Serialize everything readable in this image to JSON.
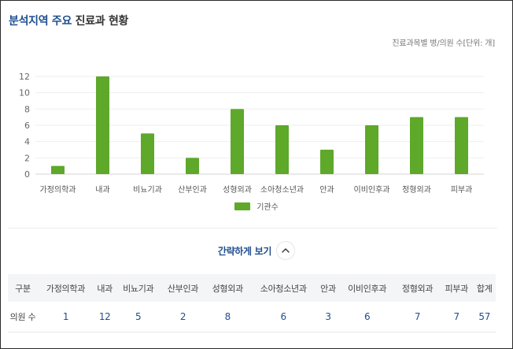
{
  "header": {
    "title_accent": "분석지역 주요",
    "title_rest": "진료과 현황",
    "unit_note": "진료과목별 병/의원 수[단위: 개]"
  },
  "colors": {
    "bar": "#5ea82a",
    "accent": "#1f4e8f",
    "grid": "#eeeeee"
  },
  "chart_data": {
    "type": "bar",
    "categories": [
      "가정의학과",
      "내과",
      "비뇨기과",
      "산부인과",
      "성형외과",
      "소아청소년과",
      "안과",
      "이비인후과",
      "정형외과",
      "피부과"
    ],
    "series": [
      {
        "name": "기관수",
        "values": [
          1,
          12,
          5,
          2,
          8,
          6,
          3,
          6,
          7,
          7
        ]
      }
    ],
    "yticks": [
      0,
      2,
      4,
      6,
      8,
      10,
      12
    ],
    "ylim": [
      0,
      12
    ],
    "grid": true,
    "legend": "bottom-center"
  },
  "toggle": {
    "label": "간략하게 보기",
    "icon": "chevron-up-icon"
  },
  "table": {
    "corner": "구분",
    "columns": [
      "가정의학과",
      "내과",
      "비뇨기과",
      "산부인과",
      "성형외과",
      "소아청소년과",
      "안과",
      "이비인후과",
      "정형외과",
      "피부과",
      "합계"
    ],
    "rows": [
      {
        "label": "의원 수",
        "values": [
          "1",
          "12",
          "5",
          "2",
          "8",
          "6",
          "3",
          "6",
          "7",
          "7",
          "57"
        ]
      }
    ]
  }
}
